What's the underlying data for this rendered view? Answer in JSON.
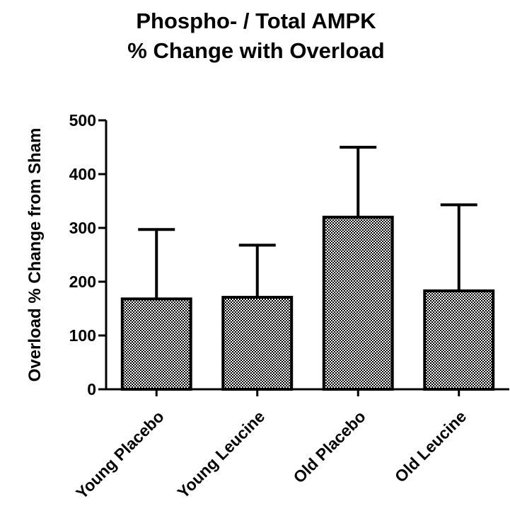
{
  "chart_data": {
    "type": "bar",
    "title": [
      "Phospho- / Total AMPK",
      "% Change with Overload"
    ],
    "y_label": "Overload % Change from Sham",
    "categories": [
      "Young Placebo",
      "Young Leucine",
      "Old Placebo",
      "Old Leucine"
    ],
    "values": [
      168,
      171,
      320,
      183
    ],
    "errors": [
      129,
      97,
      130,
      160
    ],
    "color": "#000000",
    "ylim": [
      0,
      500
    ],
    "yticks": [
      0,
      100,
      200,
      300,
      400,
      500
    ]
  }
}
